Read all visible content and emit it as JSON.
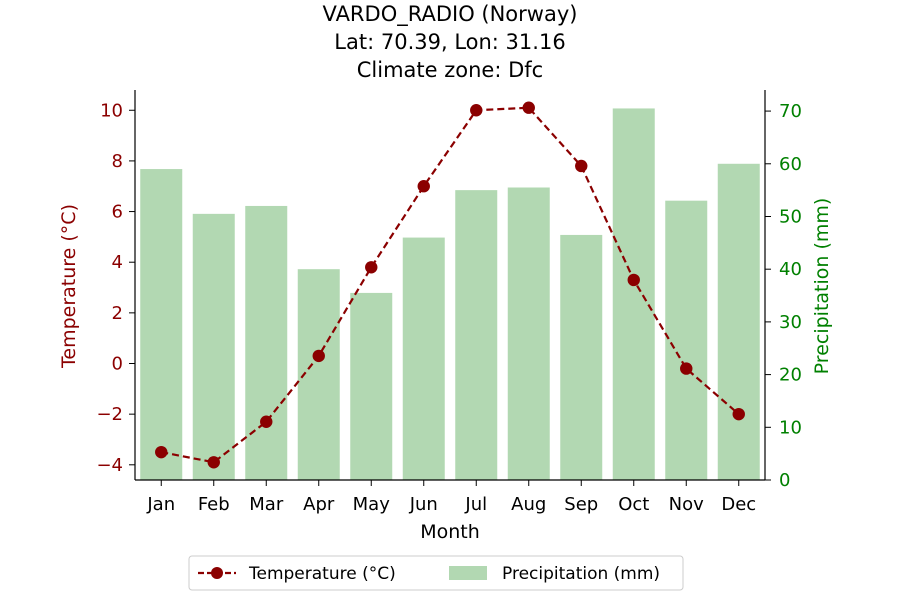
{
  "chart_data": {
    "type": "bar+line",
    "title_lines": [
      "VARDO_RADIO (Norway)",
      "Lat: 70.39, Lon: 31.16",
      "Climate zone: Dfc"
    ],
    "categories": [
      "Jan",
      "Feb",
      "Mar",
      "Apr",
      "May",
      "Jun",
      "Jul",
      "Aug",
      "Sep",
      "Oct",
      "Nov",
      "Dec"
    ],
    "xlabel": "Month",
    "ylabel_left": "Temperature (°C)",
    "ylabel_right": "Precipitation (mm)",
    "ylim_left": [
      -4.6,
      10.8
    ],
    "ylim_right": [
      0,
      74
    ],
    "yticks_left": [
      -4,
      -2,
      0,
      2,
      4,
      6,
      8,
      10
    ],
    "yticks_left_labels": [
      "−4",
      "−2",
      "0",
      "2",
      "4",
      "6",
      "8",
      "10"
    ],
    "yticks_right": [
      0,
      10,
      20,
      30,
      40,
      50,
      60,
      70
    ],
    "yticks_right_labels": [
      "0",
      "10",
      "20",
      "30",
      "40",
      "50",
      "60",
      "70"
    ],
    "series": [
      {
        "name": "Temperature (°C)",
        "kind": "line",
        "axis": "left",
        "values": [
          -3.5,
          -3.9,
          -2.3,
          0.3,
          3.8,
          7.0,
          10.0,
          10.1,
          7.8,
          3.3,
          -0.2,
          -2.0
        ]
      },
      {
        "name": "Precipitation (mm)",
        "kind": "bar",
        "axis": "right",
        "values": [
          59,
          50.5,
          52,
          40,
          35.5,
          46,
          55,
          55.5,
          46.5,
          70.5,
          53,
          60
        ]
      }
    ],
    "colors": {
      "temperature": "#8b0000",
      "precipitation": "#b2d8b2",
      "left_axis": "#8b0000",
      "right_axis": "#008000"
    },
    "legend_placement": "bottom-center",
    "grid": false
  }
}
